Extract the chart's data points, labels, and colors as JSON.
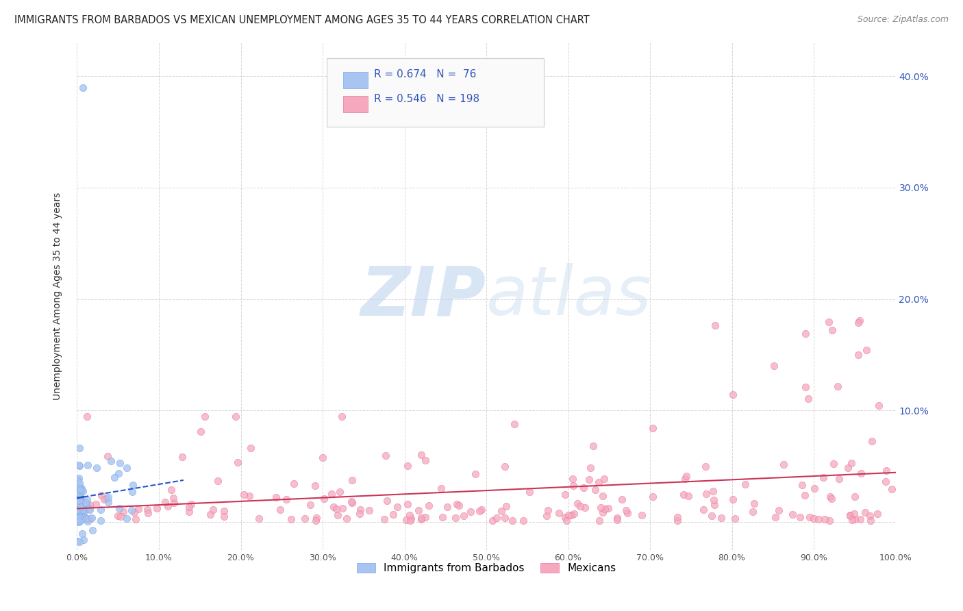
{
  "title": "IMMIGRANTS FROM BARBADOS VS MEXICAN UNEMPLOYMENT AMONG AGES 35 TO 44 YEARS CORRELATION CHART",
  "source": "Source: ZipAtlas.com",
  "ylabel": "Unemployment Among Ages 35 to 44 years",
  "xlim": [
    0,
    1.0
  ],
  "ylim": [
    -0.025,
    0.43
  ],
  "xticks": [
    0.0,
    0.1,
    0.2,
    0.3,
    0.4,
    0.5,
    0.6,
    0.7,
    0.8,
    0.9,
    1.0
  ],
  "xticklabels": [
    "0.0%",
    "10.0%",
    "20.0%",
    "30.0%",
    "40.0%",
    "50.0%",
    "60.0%",
    "70.0%",
    "80.0%",
    "90.0%",
    "100.0%"
  ],
  "yticks": [
    0.0,
    0.1,
    0.2,
    0.3,
    0.4
  ],
  "yticklabels_right": [
    "",
    "10.0%",
    "20.0%",
    "30.0%",
    "40.0%"
  ],
  "barbados_color": "#a8c4f0",
  "barbados_edge_color": "#7aaae8",
  "mexican_color": "#f5a8be",
  "mexican_edge_color": "#e87898",
  "barbados_line_color": "#2255cc",
  "mexican_line_color": "#cc3355",
  "watermark_color": "#dce8f8",
  "background_color": "#ffffff",
  "grid_color": "#cccccc",
  "legend_label_1": "Immigrants from Barbados",
  "legend_label_2": "Mexicans",
  "right_tick_color": "#3355bb",
  "title_color": "#222222",
  "source_color": "#888888"
}
